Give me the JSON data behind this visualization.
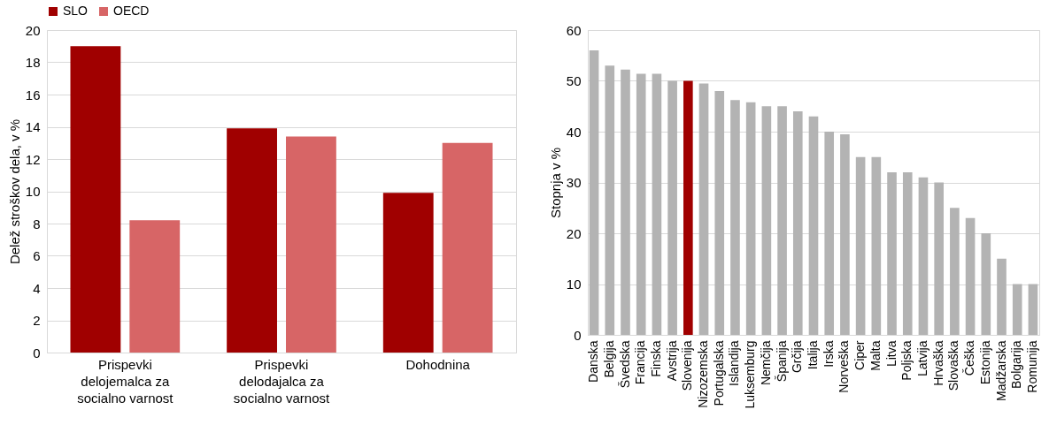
{
  "chart_data": [
    {
      "type": "bar",
      "ylabel": "Delež stroškov dela, v %",
      "categories": [
        "Prispevki delojemalca za socialno varnost",
        "Prispevki delodajalca za socialno varnost",
        "Dohodnina"
      ],
      "series": [
        {
          "name": "SLO",
          "color": "#a00000",
          "values": [
            19.0,
            13.9,
            9.9
          ]
        },
        {
          "name": "OECD",
          "color": "#d76566",
          "values": [
            8.2,
            13.4,
            13.0
          ]
        }
      ],
      "ylim": [
        0,
        20
      ],
      "yticks": [
        0,
        2,
        4,
        6,
        8,
        10,
        12,
        14,
        16,
        18,
        20
      ],
      "grid": "y",
      "legend": "top left"
    },
    {
      "type": "bar",
      "ylabel": "Stopnja v %",
      "categories": [
        "Danska",
        "Belgija",
        "Švedska",
        "Francija",
        "Finska",
        "Avstrija",
        "Slovenija",
        "Nizozemska",
        "Portugalska",
        "Islandija",
        "Luksemburg",
        "Nemčija",
        "Španija",
        "Grčija",
        "Italija",
        "Irska",
        "Norveška",
        "Ciper",
        "Malta",
        "Litva",
        "Poljska",
        "Latvija",
        "Hrvaška",
        "Slovaška",
        "Češka",
        "Estonija",
        "Madžarska",
        "Bolgarija",
        "Romunija"
      ],
      "values": [
        56,
        53,
        52.2,
        51.4,
        51.4,
        50,
        50,
        49.5,
        48,
        46.2,
        45.8,
        45,
        45,
        44,
        43,
        40,
        39.5,
        35,
        35,
        32,
        32,
        31,
        30,
        25,
        23,
        20,
        15,
        10,
        10
      ],
      "colors": [
        "#b3b3b3",
        "#b3b3b3",
        "#b3b3b3",
        "#b3b3b3",
        "#b3b3b3",
        "#b3b3b3",
        "#a00000",
        "#b3b3b3",
        "#b3b3b3",
        "#b3b3b3",
        "#b3b3b3",
        "#b3b3b3",
        "#b3b3b3",
        "#b3b3b3",
        "#b3b3b3",
        "#b3b3b3",
        "#b3b3b3",
        "#b3b3b3",
        "#b3b3b3",
        "#b3b3b3",
        "#b3b3b3",
        "#b3b3b3",
        "#b3b3b3",
        "#b3b3b3",
        "#b3b3b3",
        "#b3b3b3",
        "#b3b3b3",
        "#b3b3b3",
        "#b3b3b3"
      ],
      "ylim": [
        0,
        60
      ],
      "yticks": [
        0,
        10,
        20,
        30,
        40,
        50,
        60
      ],
      "grid": "y"
    }
  ]
}
